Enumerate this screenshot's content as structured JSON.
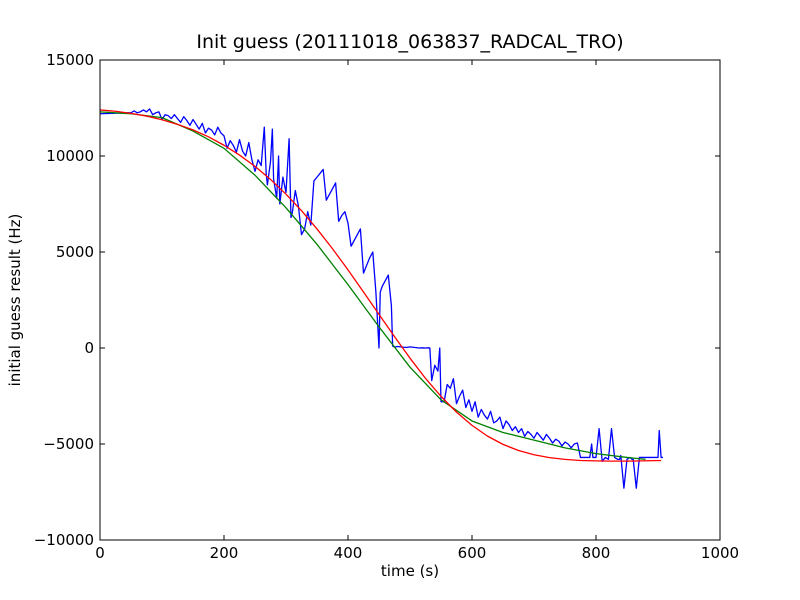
{
  "chart_data": {
    "type": "line",
    "title": "Init guess (20111018_063837_RADCAL_TRO)",
    "xlabel": "time (s)",
    "ylabel": "initial guess result (Hz)",
    "xlim": [
      0,
      1000
    ],
    "ylim": [
      -10000,
      15000
    ],
    "xticks": [
      0,
      200,
      400,
      600,
      800,
      1000
    ],
    "yticks": [
      -10000,
      -5000,
      0,
      5000,
      10000,
      15000
    ],
    "xtick_labels": [
      "0",
      "200",
      "400",
      "600",
      "800",
      "1000"
    ],
    "ytick_labels": [
      "−10000",
      "−5000",
      "0",
      "5000",
      "10000",
      "15000"
    ],
    "grid": false,
    "series": [
      {
        "color": "#0000ff",
        "x": [
          0,
          45,
          50,
          55,
          60,
          65,
          70,
          75,
          80,
          85,
          90,
          95,
          100,
          105,
          110,
          115,
          120,
          125,
          130,
          135,
          140,
          145,
          150,
          155,
          160,
          165,
          170,
          175,
          180,
          185,
          190,
          195,
          200,
          205,
          210,
          215,
          220,
          225,
          230,
          235,
          240,
          245,
          250,
          255,
          260,
          265,
          268,
          270,
          275,
          278,
          280,
          285,
          288,
          290,
          295,
          300,
          305,
          308,
          310,
          315,
          320,
          325,
          330,
          335,
          340,
          345,
          350,
          355,
          360,
          365,
          370,
          375,
          380,
          385,
          390,
          395,
          400,
          405,
          410,
          415,
          420,
          425,
          430,
          435,
          440,
          445,
          450,
          452,
          455,
          460,
          465,
          470,
          472,
          475,
          480,
          485,
          490,
          495,
          500,
          505,
          510,
          515,
          520,
          525,
          530,
          532,
          535,
          540,
          545,
          548,
          550,
          555,
          560,
          565,
          570,
          575,
          580,
          585,
          590,
          595,
          600,
          605,
          610,
          615,
          620,
          625,
          630,
          635,
          640,
          645,
          650,
          655,
          660,
          665,
          670,
          675,
          680,
          685,
          690,
          695,
          700,
          705,
          710,
          715,
          720,
          725,
          730,
          735,
          740,
          745,
          750,
          755,
          760,
          765,
          770,
          775,
          780,
          785,
          790,
          793,
          795,
          800,
          805,
          810,
          815,
          820,
          825,
          830,
          835,
          838,
          840,
          845,
          850,
          855,
          858,
          860,
          865,
          870,
          875,
          880,
          885,
          890,
          895,
          900,
          902,
          905,
          908
        ],
        "y": [
          12200,
          12250,
          12250,
          12350,
          12250,
          12300,
          12400,
          12300,
          12450,
          12150,
          12250,
          12300,
          11900,
          12150,
          12100,
          11950,
          12150,
          11950,
          11750,
          12050,
          11850,
          11600,
          11900,
          11650,
          11400,
          11700,
          11200,
          11450,
          11350,
          11100,
          11500,
          11200,
          11050,
          10400,
          10800,
          10550,
          10200,
          10850,
          10250,
          10000,
          10700,
          9800,
          9200,
          9800,
          9500,
          11500,
          9100,
          8500,
          9700,
          11400,
          8800,
          7800,
          10000,
          7500,
          8900,
          8100,
          10900,
          6800,
          7000,
          8200,
          7400,
          5900,
          6200,
          7100,
          6400,
          8700,
          8900,
          9100,
          9300,
          7700,
          8000,
          8300,
          8600,
          6600,
          6900,
          7100,
          6500,
          5300,
          5600,
          5900,
          6200,
          3900,
          4300,
          4700,
          5000,
          2900,
          0,
          2900,
          3200,
          3500,
          3800,
          2200,
          100,
          50,
          80,
          60,
          40,
          30,
          60,
          40,
          20,
          0,
          10,
          0,
          10,
          0,
          -1700,
          -900,
          -1200,
          0,
          -2800,
          -2800,
          -1900,
          -2100,
          -1600,
          -2900,
          -2500,
          -2200,
          -3100,
          -2700,
          -3300,
          -2800,
          -3600,
          -3200,
          -3500,
          -3700,
          -3300,
          -3900,
          -3800,
          -3600,
          -4200,
          -3800,
          -4000,
          -4300,
          -4100,
          -4400,
          -4200,
          -4600,
          -4350,
          -4500,
          -4700,
          -4400,
          -4600,
          -4800,
          -4500,
          -4700,
          -4950,
          -4750,
          -4850,
          -5100,
          -4900,
          -5000,
          -5200,
          -5000,
          -4950,
          -5700,
          -5700,
          -5700,
          -5700,
          -5000,
          -5700,
          -5700,
          -4200,
          -5900,
          -5700,
          -5800,
          -4200,
          -5700,
          -5800,
          -5800,
          -5600,
          -7300,
          -5800,
          -5700,
          -5800,
          -5800,
          -7300,
          -5700,
          -5700,
          -5700,
          -5700,
          -5700,
          -5700,
          -5700,
          -4300,
          -5700,
          -5700
        ]
      },
      {
        "color": "#008000",
        "x": [
          0,
          50,
          100,
          150,
          200,
          250,
          300,
          350,
          400,
          450,
          500,
          550,
          600,
          650,
          700,
          750,
          800,
          850,
          880
        ],
        "y": [
          12300,
          12200,
          12000,
          11300,
          10400,
          9000,
          7300,
          5400,
          3300,
          1100,
          -1000,
          -2700,
          -3800,
          -4400,
          -4800,
          -5200,
          -5500,
          -5700,
          -5800
        ]
      },
      {
        "color": "#ff0000",
        "x": [
          0,
          25,
          50,
          75,
          100,
          125,
          150,
          175,
          200,
          225,
          250,
          275,
          300,
          325,
          350,
          375,
          400,
          425,
          450,
          475,
          500,
          525,
          550,
          575,
          600,
          625,
          650,
          675,
          700,
          725,
          750,
          775,
          800,
          825,
          850,
          875,
          905
        ],
        "y": [
          12400,
          12330,
          12220,
          12080,
          11890,
          11650,
          11360,
          11000,
          10560,
          10050,
          9460,
          8780,
          8010,
          7150,
          6200,
          5170,
          4070,
          2920,
          1750,
          590,
          -530,
          -1580,
          -2520,
          -3340,
          -4030,
          -4590,
          -5020,
          -5340,
          -5560,
          -5710,
          -5800,
          -5860,
          -5880,
          -5890,
          -5890,
          -5880,
          -5860
        ]
      }
    ]
  }
}
